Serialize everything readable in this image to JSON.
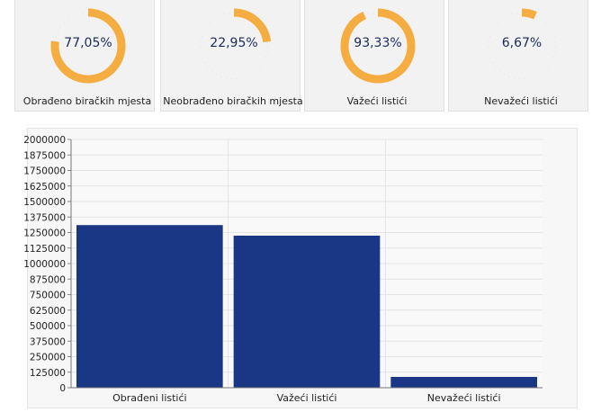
{
  "colors": {
    "gauge_fill": "#f5ad42",
    "gauge_track": "#e2e2e2",
    "kpi_text": "#1a2a5a",
    "bar_fill": "#1a3785"
  },
  "kpis": [
    {
      "value": "77,05%",
      "fraction": 0.7705,
      "label": "Obrađeno biračkih mjesta"
    },
    {
      "value": "22,95%",
      "fraction": 0.2295,
      "label": "Neobrađeno biračkih mjesta"
    },
    {
      "value": "93,33%",
      "fraction": 0.9333,
      "label": "Važeći listići"
    },
    {
      "value": "6,67%",
      "fraction": 0.0667,
      "label": "Nevažeći listići"
    }
  ],
  "chart_data": {
    "type": "bar",
    "categories": [
      "Obrađeni listići",
      "Važeći listići",
      "Nevažeći listići"
    ],
    "values": [
      1310000,
      1225000,
      87000
    ],
    "ylim": [
      0,
      2000000
    ],
    "yticks": [
      0,
      125000,
      250000,
      375000,
      500000,
      625000,
      750000,
      875000,
      1000000,
      1125000,
      1250000,
      1375000,
      1500000,
      1625000,
      1750000,
      1875000,
      2000000
    ],
    "grid": true,
    "title": "",
    "xlabel": "",
    "ylabel": ""
  }
}
